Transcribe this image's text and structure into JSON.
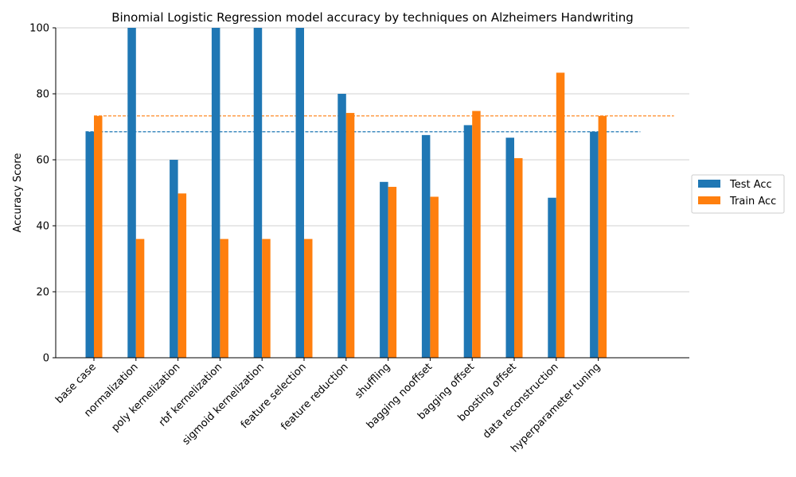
{
  "chart_data": {
    "type": "bar",
    "title": "Binomial Logistic Regression model accuracy by techniques on Alzheimers Handwriting",
    "xlabel": "",
    "ylabel": "Accuracy Score",
    "ylim": [
      0,
      100
    ],
    "yticks": [
      0,
      20,
      40,
      60,
      80,
      100
    ],
    "grid": "horizontal",
    "legend_position": "right",
    "categories": [
      "base case",
      "normalization",
      "poly kernelization",
      "rbf kernelization",
      "sigmoid kernelization",
      "feature selection",
      "feature reduction",
      "shuffling",
      "bagging nooffset",
      "bagging offset",
      "boosting offset",
      "data reconstruction",
      "hyperparameter tuning"
    ],
    "series": [
      {
        "name": "Test Acc",
        "color": "#1f77b4",
        "values": [
          68.5,
          100,
          60,
          100,
          100,
          100,
          80,
          53.3,
          67.5,
          70.5,
          66.7,
          48.5,
          68.5
        ]
      },
      {
        "name": "Train Acc",
        "color": "#ff7f0e",
        "values": [
          73.3,
          36,
          49.8,
          36,
          36,
          36,
          74.2,
          51.8,
          48.8,
          74.8,
          60.5,
          86.4,
          73.3
        ]
      }
    ],
    "baselines": [
      {
        "series": "Test Acc",
        "value": 68.5,
        "color": "#1f77b4",
        "style": "dashed"
      },
      {
        "series": "Train Acc",
        "value": 73.3,
        "color": "#ff7f0e",
        "style": "dashed"
      }
    ]
  }
}
